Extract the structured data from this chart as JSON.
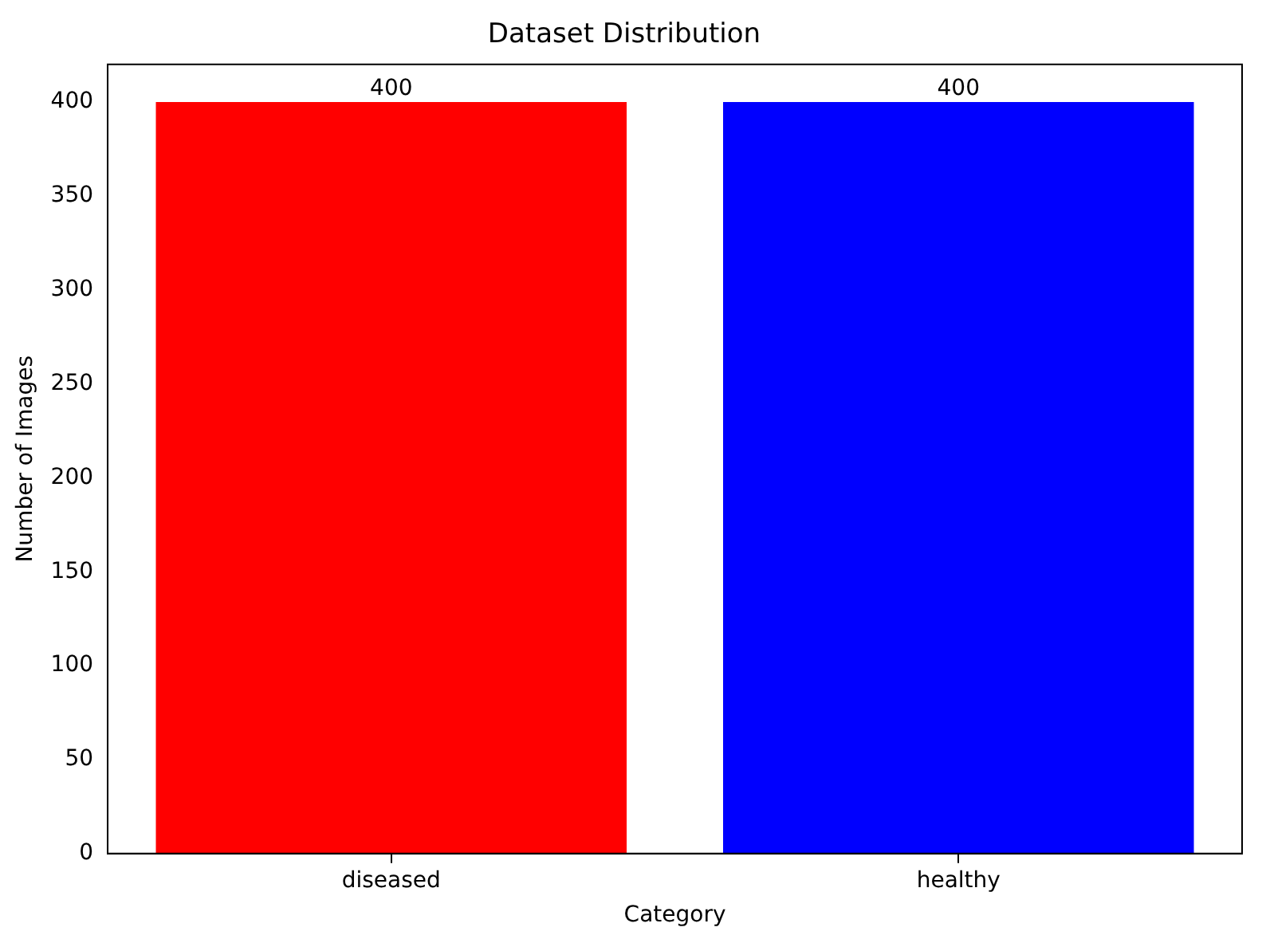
{
  "chart_data": {
    "type": "bar",
    "title": "Dataset Distribution",
    "xlabel": "Category",
    "ylabel": "Number of Images",
    "categories": [
      "diseased",
      "healthy"
    ],
    "values": [
      400,
      400
    ],
    "colors": [
      "#ff0000",
      "#0000ff"
    ],
    "ylim": [
      0,
      420
    ],
    "yticks": [
      0,
      50,
      100,
      150,
      200,
      250,
      300,
      350,
      400
    ],
    "grid": false,
    "data_labels": true
  }
}
